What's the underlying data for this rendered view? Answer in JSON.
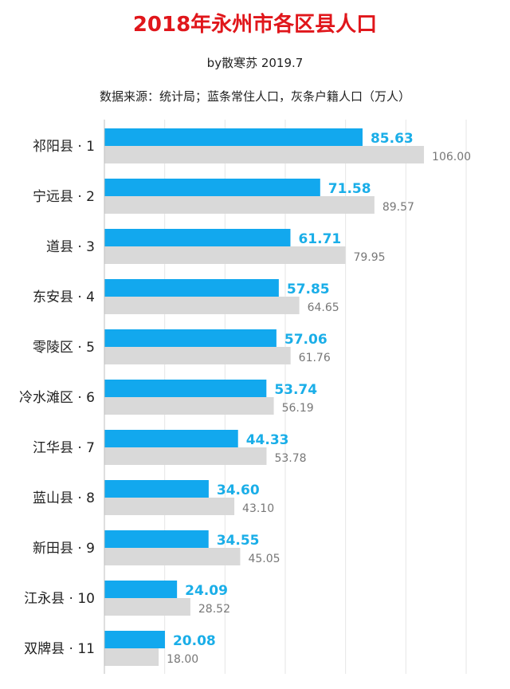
{
  "title": "2018年永州市各区县人口",
  "subtitle": "by散寒苏 2019.7",
  "source": "数据来源：统计局；蓝条常住人口，灰条户籍人口（万人）",
  "colors": {
    "resident": "#12a8ee",
    "registered": "#d9d9d9",
    "resident_text": "#1aaee8",
    "registered_text": "#777777"
  },
  "chart_data": {
    "type": "bar",
    "orientation": "horizontal",
    "categories": [
      "祁阳县 · 1",
      "宁远县 · 2",
      "道县 · 3",
      "东安县 · 4",
      "零陵区 · 5",
      "冷水滩区 · 6",
      "江华县 · 7",
      "蓝山县 · 8",
      "新田县 · 9",
      "江永县 · 10",
      "双牌县 · 11"
    ],
    "series": [
      {
        "values": [
          85.63,
          71.58,
          61.71,
          57.85,
          57.06,
          53.74,
          44.33,
          34.6,
          34.55,
          24.09,
          20.08
        ],
        "labels": [
          "85.63",
          "71.58",
          "61.71",
          "57.85",
          "57.06",
          "53.74",
          "44.33",
          "34.60",
          "34.55",
          "24.09",
          "20.08"
        ]
      },
      {
        "values": [
          106.0,
          89.57,
          79.95,
          64.65,
          61.76,
          56.19,
          53.78,
          43.1,
          45.05,
          28.52,
          18.0
        ],
        "labels": [
          "106.00",
          "89.57",
          "79.95",
          "64.65",
          "61.76",
          "56.19",
          "53.78",
          "43.10",
          "45.05",
          "28.52",
          "18.00"
        ]
      }
    ],
    "xlim": [
      0,
      120
    ],
    "grid": true,
    "legend": "none"
  }
}
